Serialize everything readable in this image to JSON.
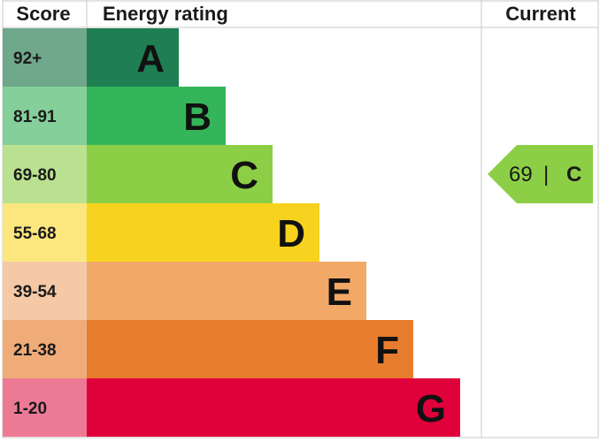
{
  "chart_data": {
    "type": "bar",
    "title": "",
    "headers": {
      "score": "Score",
      "rating": "Energy rating",
      "current": "Current"
    },
    "bands": [
      {
        "letter": "A",
        "range": "92+",
        "score_color": "#6fa88a",
        "bar_color": "#1f7f52"
      },
      {
        "letter": "B",
        "range": "81-91",
        "score_color": "#85cf9b",
        "bar_color": "#35b55a"
      },
      {
        "letter": "C",
        "range": "69-80",
        "score_color": "#b9e18f",
        "bar_color": "#8ccf46"
      },
      {
        "letter": "D",
        "range": "55-68",
        "score_color": "#fce77e",
        "bar_color": "#f7d21e"
      },
      {
        "letter": "E",
        "range": "39-54",
        "score_color": "#f5c9a5",
        "bar_color": "#f2a866"
      },
      {
        "letter": "F",
        "range": "21-38",
        "score_color": "#efac78",
        "bar_color": "#e87c2e"
      },
      {
        "letter": "G",
        "range": "1-20",
        "score_color": "#ec7a95",
        "bar_color": "#e0003a"
      }
    ],
    "current": {
      "value": "69",
      "separator": "|",
      "letter": "C",
      "color": "#8ccf46"
    },
    "grid_color": "#c8c8c8"
  }
}
